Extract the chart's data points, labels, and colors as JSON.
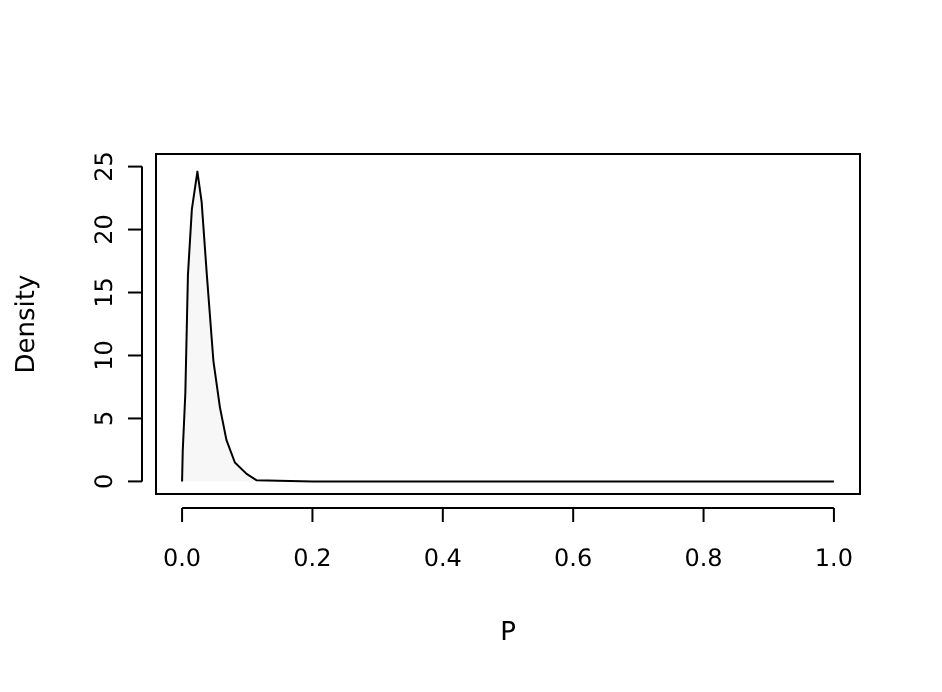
{
  "chart_data": {
    "type": "area",
    "xlabel": "P",
    "ylabel": "Density",
    "x": [
      0,
      0.001,
      0.005,
      0.009,
      0.015,
      0.0235,
      0.03,
      0.038,
      0.048,
      0.058,
      0.068,
      0.081,
      0.099,
      0.114,
      0.2,
      0.4,
      0.6,
      0.8,
      1.0
    ],
    "series": [
      {
        "color": "#000000",
        "values": [
          0,
          2.4,
          7,
          16.4,
          21.6,
          24.6,
          22.2,
          16.4,
          9.6,
          5.9,
          3.3,
          1.5,
          0.6,
          0.1,
          0,
          0,
          0,
          0,
          0
        ]
      }
    ],
    "xlim": [
      -0.04,
      1.04
    ],
    "ylim": [
      -1,
      26
    ],
    "xticks": [
      {
        "value": 0,
        "label": "0.0"
      },
      0.2,
      0.4,
      0.6,
      0.8,
      {
        "value": 1,
        "label": "1.0"
      }
    ],
    "yticks": [
      0,
      5,
      10,
      15,
      20,
      25
    ],
    "grid": false
  }
}
